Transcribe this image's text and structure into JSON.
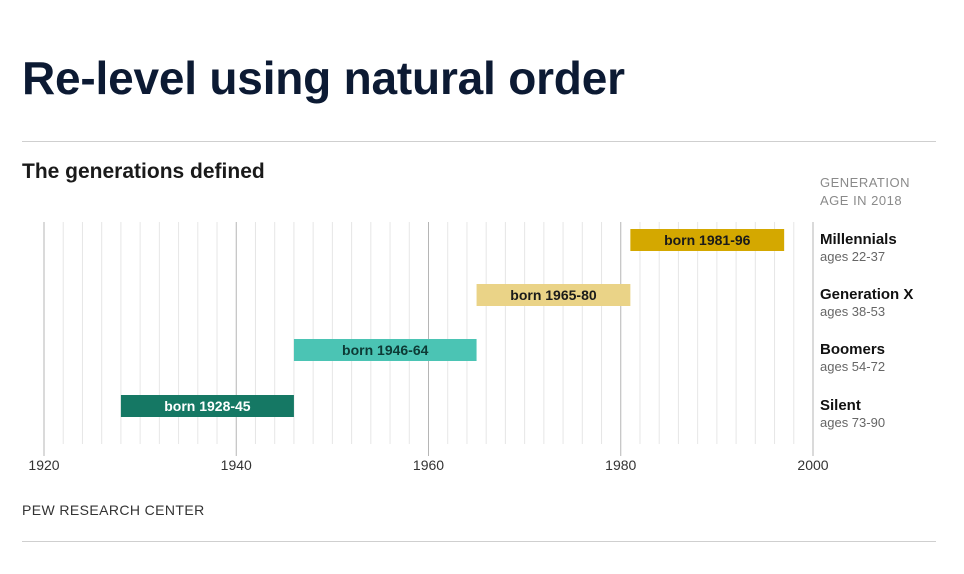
{
  "slide_title": "Re-level using natural order",
  "chart_data": {
    "type": "bar",
    "orientation": "horizontal-range",
    "title": "The generations defined",
    "legend_header": [
      "GENERATION",
      "AGE IN 2018"
    ],
    "source": "PEW RESEARCH CENTER",
    "xlim": [
      1920,
      2000
    ],
    "x_ticks": [
      1920,
      1940,
      1960,
      1980,
      2000
    ],
    "grid": true,
    "series": [
      {
        "name": "Millennials",
        "start": 1981,
        "end": 1997,
        "bar_label": "born 1981-96",
        "ages_label": "ages 22-37",
        "color": "#d4a800",
        "text_color": "#1a1a1a"
      },
      {
        "name": "Generation X",
        "start": 1965,
        "end": 1981,
        "bar_label": "born 1965-80",
        "ages_label": "ages 38-53",
        "color": "#ead387",
        "text_color": "#1a1a1a"
      },
      {
        "name": "Boomers",
        "start": 1946,
        "end": 1965,
        "bar_label": "born 1946-64",
        "ages_label": "ages 54-72",
        "color": "#4bc4b4",
        "text_color": "#0d3a35"
      },
      {
        "name": "Silent",
        "start": 1928,
        "end": 1946,
        "bar_label": "born 1928-45",
        "ages_label": "ages 73-90",
        "color": "#157864",
        "text_color": "#ffffff"
      }
    ]
  }
}
